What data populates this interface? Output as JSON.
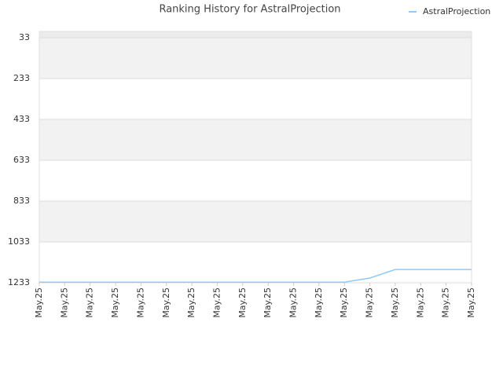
{
  "chart_data": {
    "type": "line",
    "title": "Ranking History for AstralProjection",
    "categories": [
      "May.25",
      "May.25",
      "May.25",
      "May.25",
      "May.25",
      "May.25",
      "May.25",
      "May.25",
      "May.25",
      "May.25",
      "May.25",
      "May.25",
      "May.25",
      "May.25",
      "May.25",
      "May.25",
      "May.25",
      "May.25"
    ],
    "series": [
      {
        "name": "AstralProjection",
        "color": "#90caf9",
        "values": [
          1230,
          1230,
          1230,
          1230,
          1230,
          1230,
          1230,
          1230,
          1230,
          1230,
          1230,
          1230,
          1230,
          1210,
          1168,
          1168,
          1168,
          1168
        ]
      }
    ],
    "ylim": [
      2,
      1233
    ],
    "y_inverted": true,
    "yticks": [
      33,
      233,
      433,
      633,
      833,
      1033,
      1233
    ],
    "grid": true,
    "legend": "top-right"
  }
}
